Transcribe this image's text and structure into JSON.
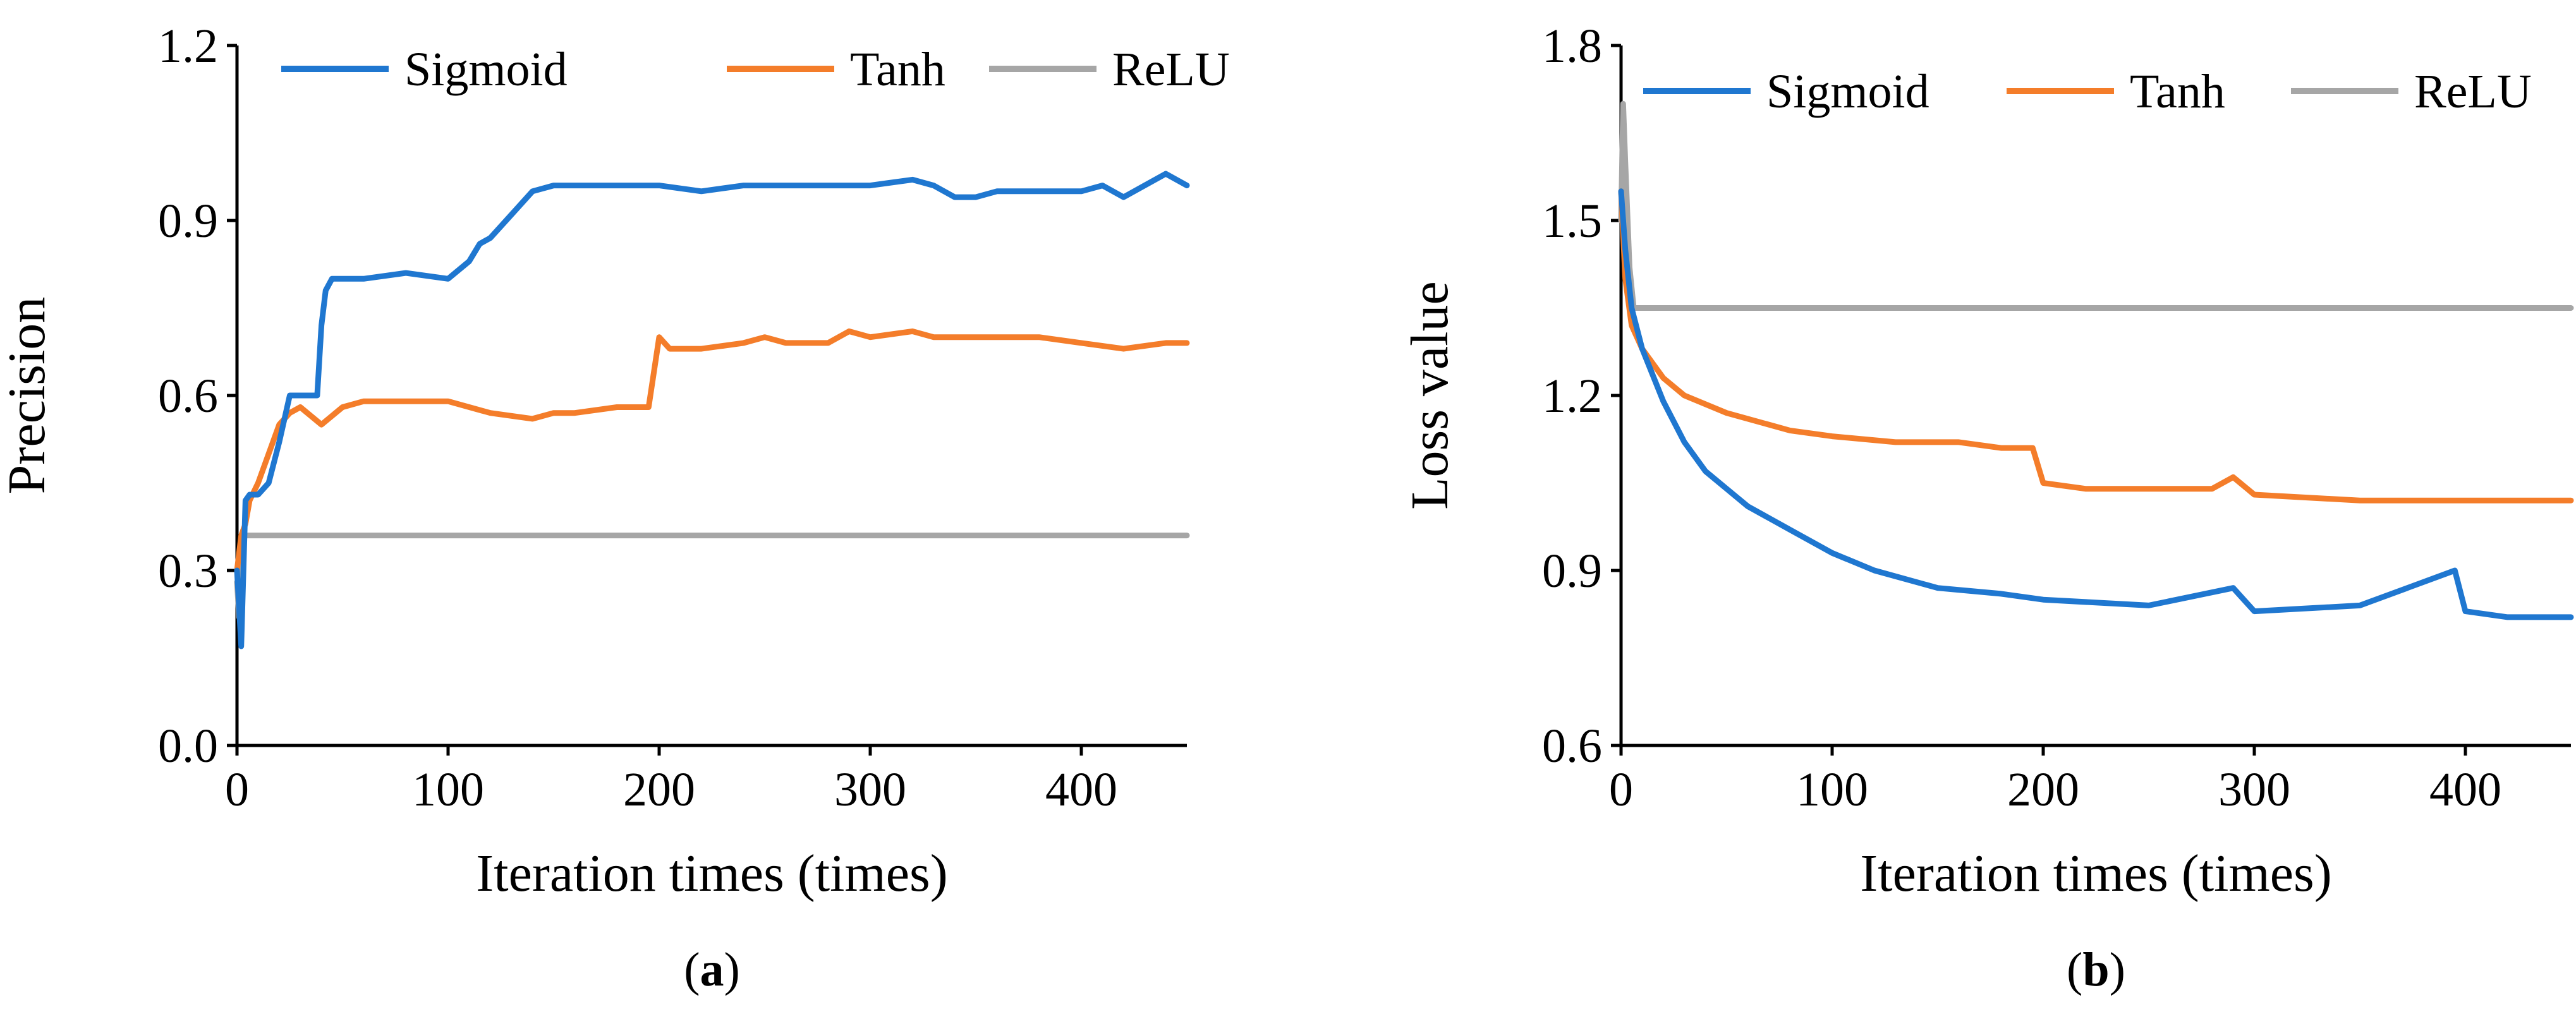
{
  "colors": {
    "sigmoid": "#1f77d0",
    "tanh": "#f47d2a",
    "relu": "#a6a6a6",
    "axis": "#000000"
  },
  "chart_data": [
    {
      "type": "line",
      "panel_label": {
        "open": "(",
        "letter": "a",
        "close": ")"
      },
      "title": "",
      "xlabel": "Iteration times (times)",
      "ylabel": "Precision",
      "xlim": [
        0,
        450
      ],
      "ylim": [
        0.0,
        1.2
      ],
      "xticks": [
        0,
        100,
        200,
        300,
        400
      ],
      "xtick_labels": [
        "0",
        "100",
        "200",
        "300",
        "400"
      ],
      "yticks": [
        0.0,
        0.3,
        0.6,
        0.9,
        1.2
      ],
      "ytick_labels": [
        "0.0",
        "0.3",
        "0.6",
        "0.9",
        "1.2"
      ],
      "grid": false,
      "legend_position": "top",
      "series": [
        {
          "name": "Sigmoid",
          "color_key": "sigmoid",
          "x": [
            0,
            2,
            4,
            6,
            10,
            15,
            20,
            25,
            28,
            35,
            38,
            40,
            42,
            45,
            50,
            60,
            80,
            100,
            110,
            115,
            120,
            130,
            140,
            150,
            160,
            180,
            200,
            220,
            240,
            260,
            280,
            300,
            320,
            330,
            340,
            350,
            360,
            380,
            400,
            410,
            420,
            430,
            440,
            450
          ],
          "y": [
            0.3,
            0.17,
            0.42,
            0.43,
            0.43,
            0.45,
            0.52,
            0.6,
            0.6,
            0.6,
            0.6,
            0.72,
            0.78,
            0.8,
            0.8,
            0.8,
            0.81,
            0.8,
            0.83,
            0.86,
            0.87,
            0.91,
            0.95,
            0.96,
            0.96,
            0.96,
            0.96,
            0.95,
            0.96,
            0.96,
            0.96,
            0.96,
            0.97,
            0.96,
            0.94,
            0.94,
            0.95,
            0.95,
            0.95,
            0.96,
            0.94,
            0.96,
            0.98,
            0.96
          ]
        },
        {
          "name": "Tanh",
          "color_key": "tanh",
          "x": [
            0,
            2,
            4,
            6,
            10,
            15,
            20,
            25,
            30,
            40,
            50,
            60,
            80,
            100,
            120,
            140,
            150,
            160,
            180,
            195,
            200,
            205,
            220,
            240,
            250,
            260,
            280,
            290,
            300,
            320,
            330,
            340,
            360,
            380,
            400,
            420,
            440,
            450
          ],
          "y": [
            0.3,
            0.36,
            0.38,
            0.42,
            0.45,
            0.5,
            0.55,
            0.57,
            0.58,
            0.55,
            0.58,
            0.59,
            0.59,
            0.59,
            0.57,
            0.56,
            0.57,
            0.57,
            0.58,
            0.58,
            0.7,
            0.68,
            0.68,
            0.69,
            0.7,
            0.69,
            0.69,
            0.71,
            0.7,
            0.71,
            0.7,
            0.7,
            0.7,
            0.7,
            0.69,
            0.68,
            0.69,
            0.69
          ]
        },
        {
          "name": "ReLU",
          "color_key": "relu",
          "x": [
            0,
            1,
            2,
            3,
            5,
            10,
            50,
            100,
            200,
            300,
            400,
            450
          ],
          "y": [
            0.28,
            0.22,
            0.3,
            0.36,
            0.36,
            0.36,
            0.36,
            0.36,
            0.36,
            0.36,
            0.36,
            0.36
          ]
        }
      ]
    },
    {
      "type": "line",
      "panel_label": {
        "open": "(",
        "letter": "b",
        "close": ")"
      },
      "title": "",
      "xlabel": "Iteration times (times)",
      "ylabel": "Loss value",
      "xlim": [
        0,
        450
      ],
      "ylim": [
        0.6,
        1.8
      ],
      "xticks": [
        0,
        100,
        200,
        300,
        400
      ],
      "xtick_labels": [
        "0",
        "100",
        "200",
        "300",
        "400"
      ],
      "yticks": [
        0.6,
        0.9,
        1.2,
        1.5,
        1.8
      ],
      "ytick_labels": [
        "0.6",
        "0.9",
        "1.2",
        "1.5",
        "1.8"
      ],
      "grid": false,
      "legend_position": "top",
      "series": [
        {
          "name": "Sigmoid",
          "color_key": "sigmoid",
          "x": [
            0,
            2,
            5,
            10,
            20,
            30,
            40,
            50,
            60,
            80,
            100,
            120,
            150,
            180,
            200,
            250,
            290,
            300,
            350,
            395,
            400,
            420,
            450
          ],
          "y": [
            1.55,
            1.45,
            1.35,
            1.28,
            1.19,
            1.12,
            1.07,
            1.04,
            1.01,
            0.97,
            0.93,
            0.9,
            0.87,
            0.86,
            0.85,
            0.84,
            0.87,
            0.83,
            0.84,
            0.9,
            0.83,
            0.82,
            0.82
          ]
        },
        {
          "name": "Tanh",
          "color_key": "tanh",
          "x": [
            0,
            2,
            5,
            10,
            20,
            30,
            50,
            80,
            100,
            130,
            160,
            180,
            195,
            200,
            220,
            250,
            280,
            290,
            300,
            350,
            400,
            450
          ],
          "y": [
            1.55,
            1.4,
            1.32,
            1.28,
            1.23,
            1.2,
            1.17,
            1.14,
            1.13,
            1.12,
            1.12,
            1.11,
            1.11,
            1.05,
            1.04,
            1.04,
            1.04,
            1.06,
            1.03,
            1.02,
            1.02,
            1.02
          ]
        },
        {
          "name": "ReLU",
          "color_key": "relu",
          "x": [
            0,
            1,
            2,
            4,
            6,
            10,
            50,
            100,
            200,
            300,
            400,
            450
          ],
          "y": [
            1.5,
            1.7,
            1.6,
            1.42,
            1.35,
            1.35,
            1.35,
            1.35,
            1.35,
            1.35,
            1.35,
            1.35
          ]
        }
      ]
    }
  ]
}
